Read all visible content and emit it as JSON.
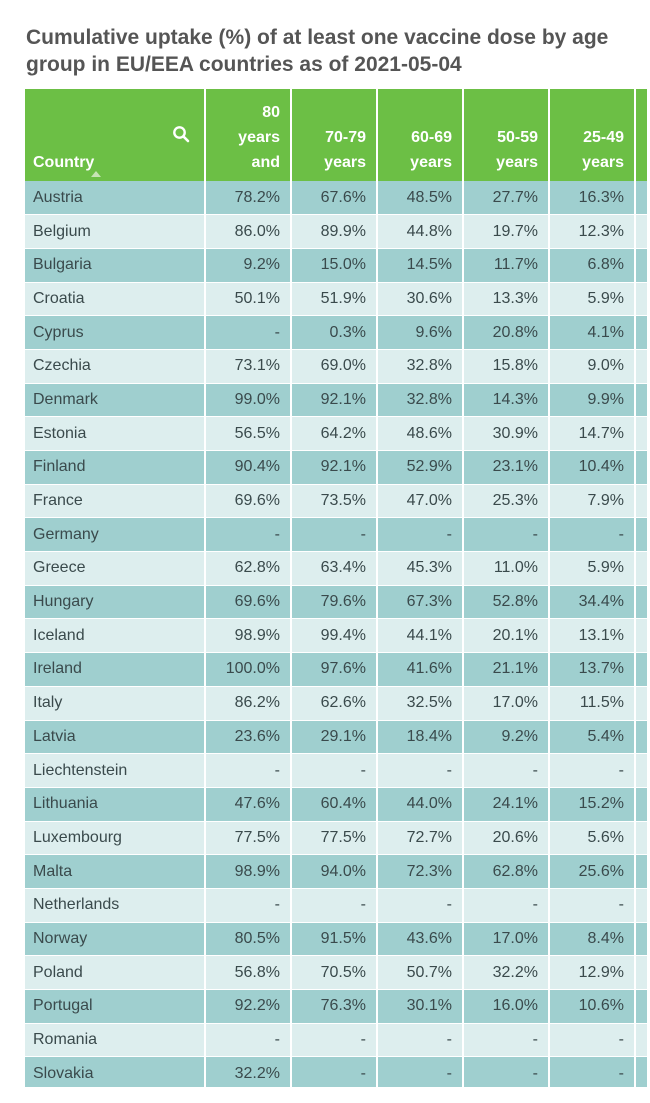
{
  "title": "Cumulative uptake (%) of at least one vaccine dose by age group in EU/EEA countries as of 2021-05-04",
  "columns": {
    "country": "Country",
    "age80": [
      "80",
      "years",
      "and"
    ],
    "age70": [
      "70-79",
      "years"
    ],
    "age60": [
      "60-69",
      "years"
    ],
    "age50": [
      "50-59",
      "years"
    ],
    "age25": [
      "25-49",
      "years"
    ]
  },
  "rows": [
    {
      "country": "Austria",
      "v80": "78.2%",
      "v70": "67.6%",
      "v60": "48.5%",
      "v50": "27.7%",
      "v25": "16.3%"
    },
    {
      "country": "Belgium",
      "v80": "86.0%",
      "v70": "89.9%",
      "v60": "44.8%",
      "v50": "19.7%",
      "v25": "12.3%"
    },
    {
      "country": "Bulgaria",
      "v80": "9.2%",
      "v70": "15.0%",
      "v60": "14.5%",
      "v50": "11.7%",
      "v25": "6.8%"
    },
    {
      "country": "Croatia",
      "v80": "50.1%",
      "v70": "51.9%",
      "v60": "30.6%",
      "v50": "13.3%",
      "v25": "5.9%"
    },
    {
      "country": "Cyprus",
      "v80": "-",
      "v70": "0.3%",
      "v60": "9.6%",
      "v50": "20.8%",
      "v25": "4.1%"
    },
    {
      "country": "Czechia",
      "v80": "73.1%",
      "v70": "69.0%",
      "v60": "32.8%",
      "v50": "15.8%",
      "v25": "9.0%"
    },
    {
      "country": "Denmark",
      "v80": "99.0%",
      "v70": "92.1%",
      "v60": "32.8%",
      "v50": "14.3%",
      "v25": "9.9%"
    },
    {
      "country": "Estonia",
      "v80": "56.5%",
      "v70": "64.2%",
      "v60": "48.6%",
      "v50": "30.9%",
      "v25": "14.7%"
    },
    {
      "country": "Finland",
      "v80": "90.4%",
      "v70": "92.1%",
      "v60": "52.9%",
      "v50": "23.1%",
      "v25": "10.4%"
    },
    {
      "country": "France",
      "v80": "69.6%",
      "v70": "73.5%",
      "v60": "47.0%",
      "v50": "25.3%",
      "v25": "7.9%"
    },
    {
      "country": "Germany",
      "v80": "-",
      "v70": "-",
      "v60": "-",
      "v50": "-",
      "v25": "-"
    },
    {
      "country": "Greece",
      "v80": "62.8%",
      "v70": "63.4%",
      "v60": "45.3%",
      "v50": "11.0%",
      "v25": "5.9%"
    },
    {
      "country": "Hungary",
      "v80": "69.6%",
      "v70": "79.6%",
      "v60": "67.3%",
      "v50": "52.8%",
      "v25": "34.4%"
    },
    {
      "country": "Iceland",
      "v80": "98.9%",
      "v70": "99.4%",
      "v60": "44.1%",
      "v50": "20.1%",
      "v25": "13.1%"
    },
    {
      "country": "Ireland",
      "v80": "100.0%",
      "v70": "97.6%",
      "v60": "41.6%",
      "v50": "21.1%",
      "v25": "13.7%"
    },
    {
      "country": "Italy",
      "v80": "86.2%",
      "v70": "62.6%",
      "v60": "32.5%",
      "v50": "17.0%",
      "v25": "11.5%"
    },
    {
      "country": "Latvia",
      "v80": "23.6%",
      "v70": "29.1%",
      "v60": "18.4%",
      "v50": "9.2%",
      "v25": "5.4%"
    },
    {
      "country": "Liechtenstein",
      "v80": "-",
      "v70": "-",
      "v60": "-",
      "v50": "-",
      "v25": "-"
    },
    {
      "country": "Lithuania",
      "v80": "47.6%",
      "v70": "60.4%",
      "v60": "44.0%",
      "v50": "24.1%",
      "v25": "15.2%"
    },
    {
      "country": "Luxembourg",
      "v80": "77.5%",
      "v70": "77.5%",
      "v60": "72.7%",
      "v50": "20.6%",
      "v25": "5.6%"
    },
    {
      "country": "Malta",
      "v80": "98.9%",
      "v70": "94.0%",
      "v60": "72.3%",
      "v50": "62.8%",
      "v25": "25.6%"
    },
    {
      "country": "Netherlands",
      "v80": "-",
      "v70": "-",
      "v60": "-",
      "v50": "-",
      "v25": "-"
    },
    {
      "country": "Norway",
      "v80": "80.5%",
      "v70": "91.5%",
      "v60": "43.6%",
      "v50": "17.0%",
      "v25": "8.4%"
    },
    {
      "country": "Poland",
      "v80": "56.8%",
      "v70": "70.5%",
      "v60": "50.7%",
      "v50": "32.2%",
      "v25": "12.9%"
    },
    {
      "country": "Portugal",
      "v80": "92.2%",
      "v70": "76.3%",
      "v60": "30.1%",
      "v50": "16.0%",
      "v25": "10.6%"
    },
    {
      "country": "Romania",
      "v80": "-",
      "v70": "-",
      "v60": "-",
      "v50": "-",
      "v25": "-"
    },
    {
      "country": "Slovakia",
      "v80": "32.2%",
      "v70": "-",
      "v60": "-",
      "v50": "-",
      "v25": "-"
    }
  ],
  "colors": {
    "header_bg": "#6cbf45",
    "row_odd_bg": "#9fcfcf",
    "row_even_bg": "#ddeeee",
    "title_text": "#555555"
  },
  "icons": {
    "search": "search-icon",
    "sort": "sort-indicator-icon"
  }
}
